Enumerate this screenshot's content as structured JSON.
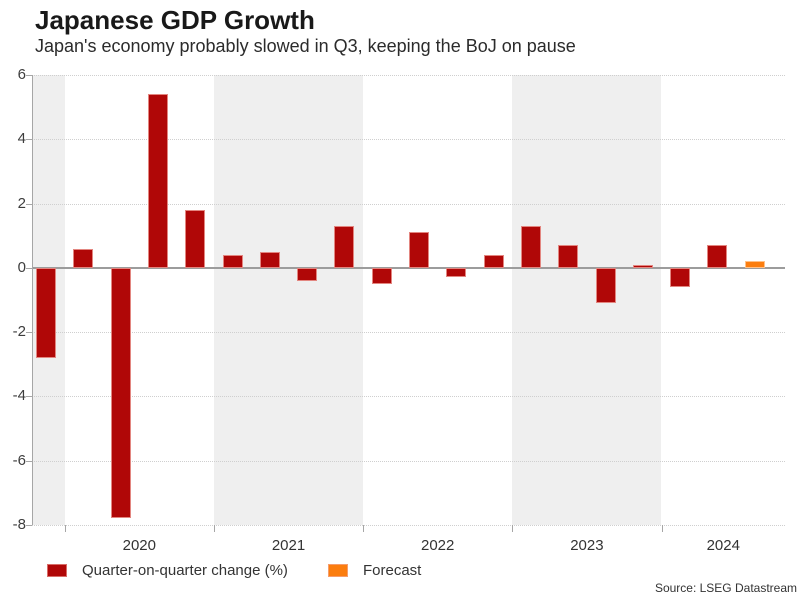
{
  "chart_data": {
    "type": "bar",
    "title": "Japanese GDP Growth",
    "subtitle": "Japan's economy probably slowed in Q3, keeping the BoJ on pause",
    "xlabel": "",
    "ylabel": "",
    "ylim": [
      -8,
      6
    ],
    "yticks": [
      6,
      4,
      2,
      0,
      -2,
      -4,
      -6,
      -8
    ],
    "grid": "horizontal-dotted",
    "legend_position": "bottom-left",
    "x": [
      "Q4 2019",
      "Q1 2020",
      "Q2 2020",
      "Q3 2020",
      "Q4 2020",
      "Q1 2021",
      "Q2 2021",
      "Q3 2021",
      "Q4 2021",
      "Q1 2022",
      "Q2 2022",
      "Q3 2022",
      "Q4 2022",
      "Q1 2023",
      "Q2 2023",
      "Q3 2023",
      "Q4 2023",
      "Q1 2024",
      "Q2 2024",
      "Q3 2024"
    ],
    "values": [
      -2.8,
      0.6,
      -7.8,
      5.4,
      1.8,
      0.4,
      0.5,
      -0.4,
      1.3,
      -0.5,
      1.1,
      -0.3,
      0.4,
      1.3,
      0.7,
      -1.1,
      0.1,
      -0.6,
      0.7,
      0.2
    ],
    "forecast_indices": [
      19
    ],
    "x_year_labels": [
      "2020",
      "2021",
      "2022",
      "2023",
      "2024"
    ],
    "series": [
      {
        "name": "Quarter-on-quarter change (%)",
        "color": "#b00707"
      },
      {
        "name": "Forecast",
        "color": "#fb7d0e"
      }
    ],
    "band_gray": "#efefef",
    "band_white": "#ffffff"
  },
  "source": "Source: LSEG Datastream"
}
